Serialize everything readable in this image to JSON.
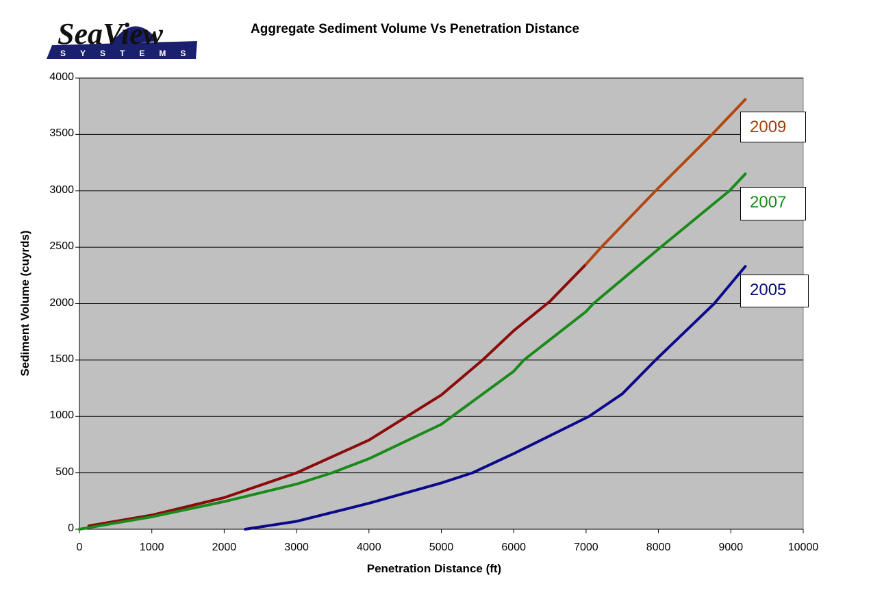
{
  "logo": {
    "name": "SeaView",
    "sub": "SYSTEMS",
    "navy": "#1a1f6e"
  },
  "title": "Aggregate Sediment Volume Vs Penetration Distance",
  "chart_data": {
    "type": "line",
    "title": "Aggregate Sediment Volume Vs Penetration Distance",
    "xlabel": "Penetration Distance (ft)",
    "ylabel": "Sediment Volume (cuyrds)",
    "xlim": [
      0,
      10000
    ],
    "ylim": [
      0,
      4000
    ],
    "xticks": [
      "0",
      "1000",
      "2000",
      "3000",
      "4000",
      "5000",
      "6000",
      "7000",
      "8000",
      "9000",
      "10000"
    ],
    "yticks": [
      "0",
      "500",
      "1000",
      "1500",
      "2000",
      "2500",
      "3000",
      "3500",
      "4000"
    ],
    "grid": "horizontal",
    "plot_background": "#c0c0c0",
    "legend_position": "inline labels at right end of each line",
    "series": [
      {
        "name": "2009",
        "color": "#8b0a0a",
        "upper_color": "#b4460f",
        "label_color": "#a0400e",
        "x": [
          130,
          1000,
          2000,
          3000,
          4000,
          5000,
          5570,
          6000,
          6500,
          7000,
          7210,
          7960,
          8740,
          9200
        ],
        "y": [
          30,
          125,
          280,
          500,
          790,
          1190,
          1500,
          1760,
          2020,
          2350,
          2500,
          3000,
          3500,
          3810
        ]
      },
      {
        "name": "2007",
        "color": "#1a8a1a",
        "label_color": "#1a8a1a",
        "x": [
          0,
          1000,
          2000,
          3000,
          3490,
          4000,
          5000,
          6000,
          6140,
          7000,
          7100,
          8030,
          8980,
          9200
        ],
        "y": [
          0,
          110,
          245,
          400,
          500,
          625,
          930,
          1400,
          1500,
          1930,
          2000,
          2500,
          3000,
          3150
        ]
      },
      {
        "name": "2005",
        "color": "#0a0a8a",
        "label_color": "#0a0a7a",
        "x": [
          2290,
          3000,
          4000,
          5000,
          5430,
          6000,
          7040,
          7500,
          7960,
          8770,
          9200
        ],
        "y": [
          0,
          70,
          230,
          410,
          500,
          670,
          1000,
          1200,
          1500,
          2000,
          2330
        ]
      }
    ]
  }
}
